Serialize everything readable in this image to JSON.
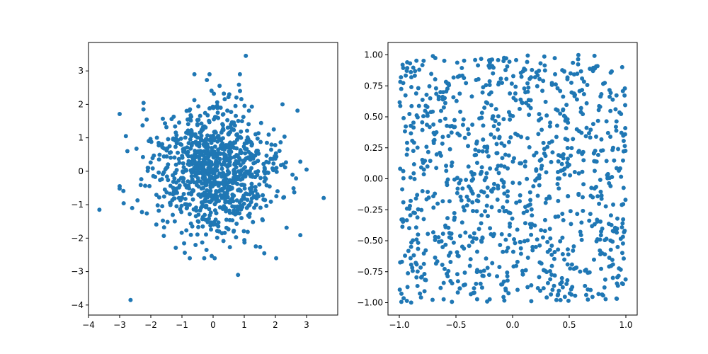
{
  "chart_data": [
    {
      "type": "scatter",
      "marker_color": "#1f77b4",
      "distribution": "gaussian",
      "n_points": 1000,
      "center": [
        0,
        0
      ],
      "std": 1.0,
      "xlim": [
        -4,
        4
      ],
      "ylim": [
        -4.3,
        3.85
      ],
      "xticks": [
        "−4",
        "−3",
        "−2",
        "−1",
        "0",
        "1",
        "2",
        "3"
      ],
      "xtick_values": [
        -4,
        -3,
        -2,
        -1,
        0,
        1,
        2,
        3
      ],
      "yticks": [
        "−4",
        "−3",
        "−2",
        "−1",
        "0",
        "1",
        "2",
        "3"
      ],
      "ytick_values": [
        -4,
        -3,
        -2,
        -1,
        0,
        1,
        2,
        3
      ],
      "title": "",
      "xlabel": "",
      "ylabel": "",
      "grid": false,
      "legend": false,
      "outliers": [
        {
          "x": 1.05,
          "y": 3.45
        },
        {
          "x": -2.65,
          "y": -3.85
        },
        {
          "x": -3.65,
          "y": -1.15
        },
        {
          "x": 3.55,
          "y": -0.8
        },
        {
          "x": 0.8,
          "y": -3.1
        },
        {
          "x": -2.8,
          "y": 1.05
        },
        {
          "x": 3.0,
          "y": 0.05
        },
        {
          "x": -0.6,
          "y": 2.9
        },
        {
          "x": 0.05,
          "y": -2.6
        }
      ]
    },
    {
      "type": "scatter",
      "marker_color": "#1f77b4",
      "distribution": "uniform",
      "n_points": 1000,
      "x_range": [
        -1,
        1
      ],
      "y_range": [
        -1,
        1
      ],
      "xlim": [
        -1.1,
        1.1
      ],
      "ylim": [
        -1.1,
        1.1
      ],
      "xticks": [
        "−1.0",
        "−0.5",
        "0.0",
        "0.5",
        "1.0"
      ],
      "xtick_values": [
        -1.0,
        -0.5,
        0.0,
        0.5,
        1.0
      ],
      "yticks": [
        "−1.00",
        "−0.75",
        "−0.50",
        "−0.25",
        "0.00",
        "0.25",
        "0.50",
        "0.75",
        "1.00"
      ],
      "ytick_values": [
        -1.0,
        -0.75,
        -0.5,
        -0.25,
        0.0,
        0.25,
        0.5,
        0.75,
        1.0
      ],
      "title": "",
      "xlabel": "",
      "ylabel": "",
      "grid": false,
      "legend": false
    }
  ]
}
